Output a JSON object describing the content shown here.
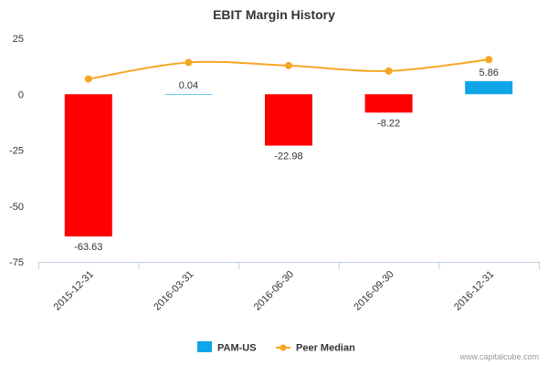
{
  "chart_data": {
    "type": "bar",
    "title": "EBIT Margin History",
    "categories": [
      "2015-12-31",
      "2016-03-31",
      "2016-06-30",
      "2016-09-30",
      "2016-12-31"
    ],
    "ylim": [
      -75,
      25
    ],
    "yticks": [
      25,
      0,
      -25,
      -50,
      -75
    ],
    "grid": false,
    "legend_position": "bottom-center",
    "series": [
      {
        "name": "PAM-US",
        "kind": "bar",
        "values": [
          -63.63,
          0.04,
          -22.98,
          -8.22,
          5.86
        ],
        "labels": [
          "-63.63",
          "0.04",
          "-22.98",
          "-8.22",
          "5.86"
        ],
        "positive_color": "#0ea5e9",
        "negative_color": "#ff0000"
      },
      {
        "name": "Peer Median",
        "kind": "line",
        "values": [
          6.8,
          14.2,
          12.8,
          10.4,
          15.5
        ],
        "color": "#f5a623"
      }
    ]
  },
  "credit": "www.capitalcube.com"
}
